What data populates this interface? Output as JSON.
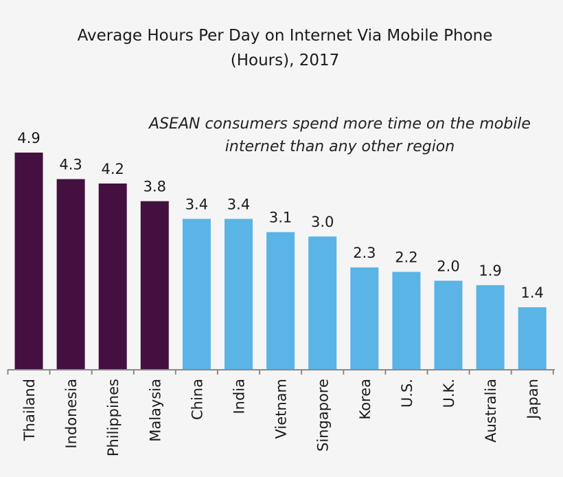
{
  "chart_data": {
    "type": "bar",
    "title_lines": [
      "Average Hours Per Day on Internet Via Mobile Phone",
      "(Hours), 2017"
    ],
    "annotation_lines": [
      "ASEAN consumers spend more time on the mobile",
      "internet than any other region"
    ],
    "categories": [
      "Thailand",
      "Indonesia",
      "Philippines",
      "Malaysia",
      "China",
      "India",
      "Vietnam",
      "Singapore",
      "Korea",
      "U.S.",
      "U.K.",
      "Australia",
      "Japan"
    ],
    "values": [
      4.9,
      4.3,
      4.2,
      3.8,
      3.4,
      3.4,
      3.1,
      3.0,
      2.3,
      2.2,
      2.0,
      1.9,
      1.4
    ],
    "value_labels": [
      "4.9",
      "4.3",
      "4.2",
      "3.8",
      "3.4",
      "3.4",
      "3.1",
      "3.0",
      "2.3",
      "2.2",
      "2.0",
      "1.9",
      "1.4"
    ],
    "groups": [
      "ASEAN",
      "ASEAN",
      "ASEAN",
      "ASEAN",
      "other",
      "other",
      "other",
      "other",
      "other",
      "other",
      "other",
      "other",
      "other"
    ],
    "colors": {
      "ASEAN": "#43103f",
      "other": "#5ab4e5",
      "axis": "#8a8a8a"
    },
    "ylim": [
      0,
      4.9
    ],
    "xlabel": "",
    "ylabel": "",
    "grid": false,
    "legend": "none"
  }
}
